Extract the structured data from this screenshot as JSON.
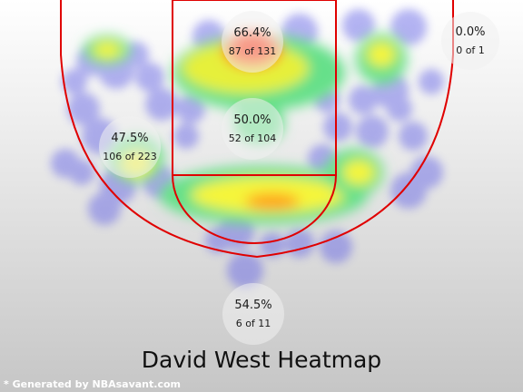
{
  "title": "David West Heatmap",
  "credit": "* Generated by NBAsavant.com",
  "chart_data": {
    "type": "heatmap",
    "player": "David West",
    "zones": [
      {
        "name": "restricted-area",
        "pct": "66.4%",
        "made": 87,
        "attempts": 131,
        "label": "87 of 131"
      },
      {
        "name": "paint",
        "pct": "50.0%",
        "made": 52,
        "attempts": 104,
        "label": "52 of 104"
      },
      {
        "name": "left-midrange",
        "pct": "47.5%",
        "made": 106,
        "attempts": 223,
        "label": "106 of 223"
      },
      {
        "name": "right-corner-three",
        "pct": "0.0%",
        "made": 0,
        "attempts": 1,
        "label": "0 of 1"
      },
      {
        "name": "top-three",
        "pct": "54.5%",
        "made": 6,
        "attempts": 11,
        "label": "6 of 11"
      }
    ],
    "colors": {
      "court_lines": "#e00000",
      "hot": "#ff3b1a",
      "warm": "#f5f53a",
      "mid": "#66e08a",
      "cool": "#5c5ce6"
    }
  }
}
